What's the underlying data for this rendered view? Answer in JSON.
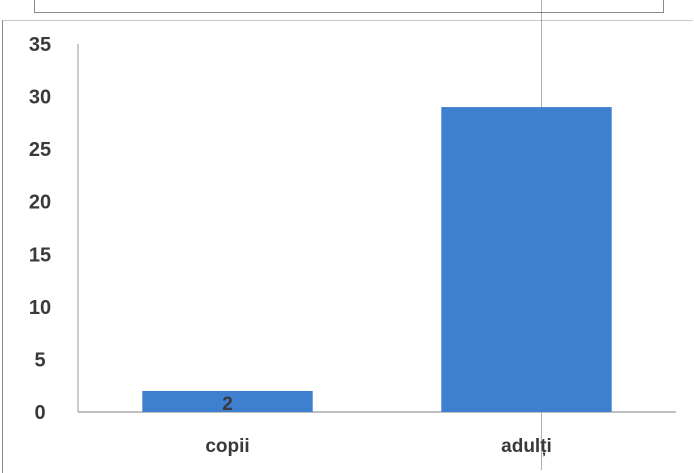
{
  "chart_data": {
    "type": "bar",
    "categories": [
      "copii",
      "adulți"
    ],
    "values": [
      2,
      29
    ],
    "data_labels": [
      "2",
      ""
    ],
    "ylim": [
      0,
      35
    ],
    "yticks": [
      "0",
      "5",
      "10",
      "15",
      "20",
      "25",
      "30",
      "35"
    ],
    "bar_color": "#3f7fd0",
    "grid": false,
    "legend": "none",
    "title": "",
    "xlabel": "",
    "ylabel": ""
  }
}
